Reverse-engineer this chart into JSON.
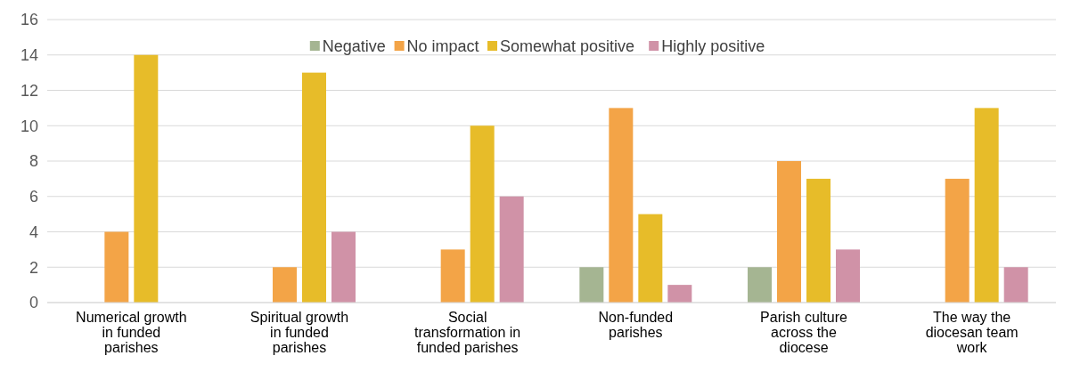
{
  "chart_data": {
    "type": "bar",
    "categories": [
      "Numerical growth in funded parishes",
      "Spiritual growth in funded parishes",
      "Social transformation in funded parishes",
      "Non-funded parishes",
      "Parish culture across the diocese",
      "The way the diocesan team work"
    ],
    "series": [
      {
        "name": "Negative",
        "color": "#a5b592",
        "values": [
          0,
          0,
          0,
          2,
          2,
          0
        ]
      },
      {
        "name": "No impact",
        "color": "#f3a447",
        "values": [
          4,
          2,
          3,
          11,
          8,
          7
        ]
      },
      {
        "name": "Somewhat positive",
        "color": "#e7bc29",
        "values": [
          14,
          13,
          10,
          5,
          7,
          11
        ]
      },
      {
        "name": "Highly positive",
        "color": "#d092a7",
        "values": [
          0,
          4,
          6,
          1,
          3,
          2
        ]
      }
    ],
    "ylim": [
      0,
      16
    ],
    "yticks": [
      0,
      2,
      4,
      6,
      8,
      10,
      12,
      14,
      16
    ],
    "grid": "y",
    "legend": "top"
  }
}
